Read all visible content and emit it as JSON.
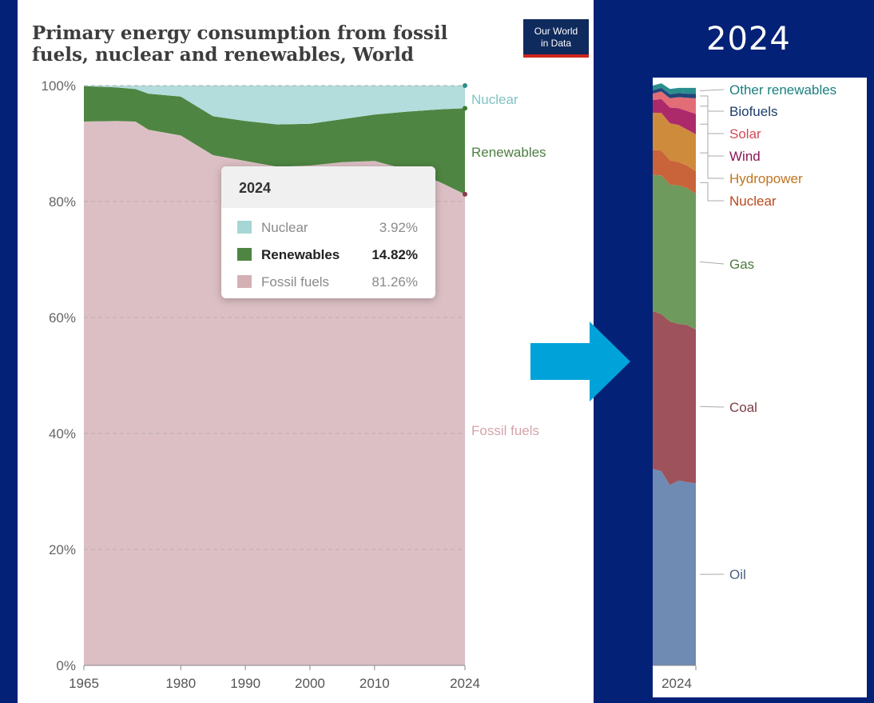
{
  "title": "Primary energy consumption from fossil fuels, nuclear and renewables, World",
  "logo": {
    "line1": "Our World",
    "line2": "in Data"
  },
  "right_heading": "2024",
  "colors": {
    "background": "#032176",
    "nuclear": "#b3dcdc",
    "renewables": "#4e8542",
    "fossil": "#dbbfc4",
    "arrow": "#00a3d9"
  },
  "tooltip": {
    "year": "2024",
    "rows": [
      {
        "name": "Nuclear",
        "value": "3.92%"
      },
      {
        "name": "Renewables",
        "value": "14.82%"
      },
      {
        "name": "Fossil fuels",
        "value": "81.26%"
      }
    ]
  },
  "chart_data": [
    {
      "type": "area",
      "stacked": true,
      "title": "Primary energy consumption from fossil fuels, nuclear and renewables, World",
      "ylim": [
        0,
        100
      ],
      "y_ticks": [
        "0%",
        "20%",
        "40%",
        "60%",
        "80%",
        "100%"
      ],
      "x_ticks": [
        "1965",
        "1980",
        "1990",
        "2000",
        "2010",
        "2024"
      ],
      "grid": true,
      "x": [
        1965,
        1970,
        1973,
        1975,
        1980,
        1985,
        1990,
        1995,
        2000,
        2005,
        2010,
        2015,
        2020,
        2024
      ],
      "series": [
        {
          "name": "Fossil fuels",
          "values": [
            93.8,
            93.9,
            93.8,
            92.4,
            91.4,
            88.0,
            87.0,
            86.0,
            86.2,
            86.8,
            87.0,
            85.5,
            83.4,
            81.26
          ]
        },
        {
          "name": "Renewables",
          "values": [
            6.1,
            5.8,
            5.6,
            6.2,
            6.7,
            6.7,
            6.9,
            7.3,
            7.2,
            7.4,
            8.0,
            10.0,
            12.5,
            14.82
          ]
        },
        {
          "name": "Nuclear",
          "values": [
            0.1,
            0.3,
            0.6,
            1.4,
            1.9,
            5.3,
            6.1,
            6.7,
            6.6,
            5.8,
            5.0,
            4.5,
            4.1,
            3.92
          ]
        }
      ],
      "legend_placement": "right (end labels)"
    },
    {
      "type": "area",
      "stacked": true,
      "title": "2024",
      "ylim": [
        0,
        100
      ],
      "x_ticks": [
        "2024"
      ],
      "x": [
        2019,
        2020,
        2021,
        2022,
        2023,
        2024
      ],
      "series": [
        {
          "name": "Oil",
          "values": [
            33.9,
            33.5,
            31.1,
            31.9,
            31.6,
            31.4
          ]
        },
        {
          "name": "Coal",
          "values": [
            27.2,
            27.1,
            28.2,
            27.0,
            27.1,
            26.5
          ]
        },
        {
          "name": "Gas",
          "values": [
            23.5,
            23.9,
            23.6,
            23.9,
            23.6,
            23.4
          ]
        },
        {
          "name": "Nuclear",
          "values": [
            4.3,
            4.3,
            4.2,
            4.0,
            3.9,
            3.9
          ]
        },
        {
          "name": "Hydropower",
          "values": [
            6.4,
            6.5,
            6.4,
            6.4,
            6.2,
            6.4
          ]
        },
        {
          "name": "Wind",
          "values": [
            2.2,
            2.4,
            2.7,
            2.9,
            3.2,
            3.5
          ]
        },
        {
          "name": "Solar",
          "values": [
            1.1,
            1.3,
            1.6,
            1.9,
            2.3,
            2.7
          ]
        },
        {
          "name": "Biofuels",
          "values": [
            0.6,
            0.6,
            0.7,
            0.7,
            0.7,
            0.8
          ]
        },
        {
          "name": "Other renewables",
          "values": [
            0.8,
            0.8,
            0.9,
            0.9,
            1.0,
            1.0
          ]
        }
      ],
      "series_colors": {
        "Oil": "#6f8ab3",
        "Coal": "#9e525b",
        "Gas": "#6f9a5e",
        "Nuclear": "#c9643a",
        "Hydropower": "#cf8b3c",
        "Wind": "#ad2a6a",
        "Solar": "#e26d76",
        "Biofuels": "#21467a",
        "Other renewables": "#2b8e8e"
      },
      "label_colors": {
        "Oil": "#4a5f80",
        "Coal": "#7d3c44",
        "Gas": "#4f7a40",
        "Nuclear": "#b8491d",
        "Hydropower": "#c0741f",
        "Wind": "#8a1656",
        "Solar": "#d54a58",
        "Biofuels": "#1c3d6b",
        "Other renewables": "#1b7f7f"
      },
      "legend_placement": "right (end labels)"
    }
  ]
}
